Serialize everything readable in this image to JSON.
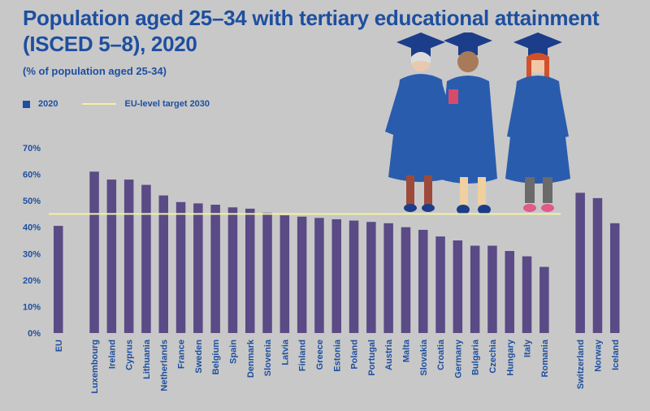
{
  "title": "Population aged 25–34 with tertiary educational attainment (ISCED 5–8), 2020",
  "subtitle": "(% of population aged 25-34)",
  "legend": {
    "series_label": "2020",
    "target_label": "EU-level target 2030"
  },
  "colors": {
    "title": "#1e4fa0",
    "bar": "#5a4a86",
    "target_line": "#f2f2a0",
    "background": "#c8c8c8"
  },
  "chart_data": {
    "type": "bar",
    "title": "Population aged 25–34 with tertiary educational attainment (ISCED 5–8), 2020",
    "subtitle": "(% of population aged 25-34)",
    "categories": [
      "EU",
      "Luxembourg",
      "Ireland",
      "Cyprus",
      "Lithuania",
      "Netherlands",
      "France",
      "Sweden",
      "Belgium",
      "Spain",
      "Denmark",
      "Slovenia",
      "Latvia",
      "Finland",
      "Greece",
      "Estonia",
      "Poland",
      "Portugal",
      "Austria",
      "Malta",
      "Slovakia",
      "Croatia",
      "Germany",
      "Bulgaria",
      "Czechia",
      "Hungary",
      "Italy",
      "Romania",
      "Switzerland",
      "Norway",
      "Iceland"
    ],
    "groups": [
      1,
      27,
      3
    ],
    "series": [
      {
        "name": "2020",
        "values": [
          40.5,
          61,
          58,
          58,
          56,
          52,
          49.5,
          49,
          48.5,
          47.5,
          47,
          45.5,
          44.5,
          44,
          43.5,
          43,
          42.5,
          42,
          41.5,
          40,
          39,
          36.5,
          35,
          33,
          33,
          31,
          29,
          25,
          53,
          51,
          41.5
        ]
      }
    ],
    "target": {
      "name": "EU-level target 2030",
      "value": 45
    },
    "yticks": [
      "0%",
      "10%",
      "20%",
      "30%",
      "40%",
      "50%",
      "60%",
      "70%"
    ],
    "ylim": [
      0,
      70
    ],
    "grid": false,
    "legend_position": "top-left"
  }
}
